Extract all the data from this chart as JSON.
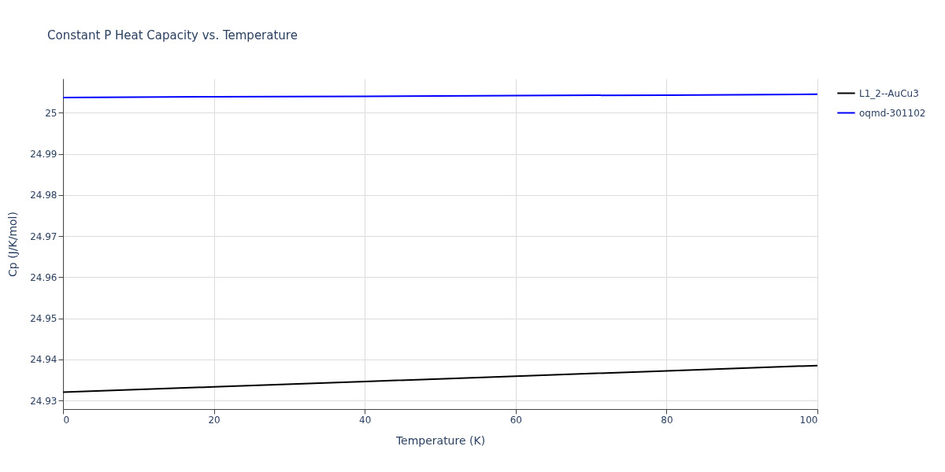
{
  "chart_data": {
    "type": "line",
    "title": "Constant P Heat Capacity vs. Temperature",
    "xlabel": "Temperature (K)",
    "ylabel": "Cp (J/K/mol)",
    "x": [
      0,
      20,
      40,
      60,
      80,
      100
    ],
    "series": [
      {
        "name": "L1_2--AuCu3",
        "color": "#000000",
        "values": [
          24.932,
          24.9333,
          24.9346,
          24.9359,
          24.9372,
          24.9385
        ]
      },
      {
        "name": "oqmd-301102",
        "color": "#0000ff",
        "values": [
          25.0037,
          25.0039,
          25.004,
          25.0042,
          25.0043,
          25.0045
        ]
      }
    ],
    "xlim": [
      0,
      100
    ],
    "xticks": [
      0,
      20,
      40,
      60,
      80,
      100
    ],
    "ylim": [
      24.9279,
      25.0083
    ],
    "yticks": [
      24.93,
      24.94,
      24.95,
      24.96,
      24.97,
      24.98,
      24.99,
      25
    ],
    "grid": true,
    "legend": "top right",
    "marker": "none",
    "line_style": "solid"
  }
}
